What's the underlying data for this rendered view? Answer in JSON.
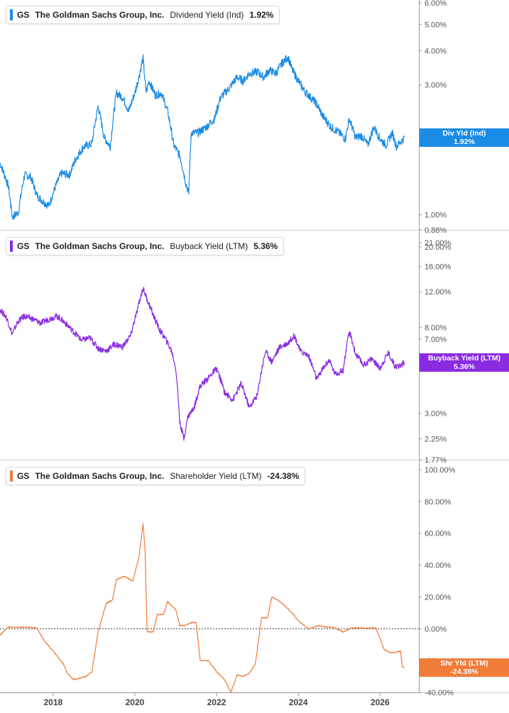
{
  "chart_data": [
    {
      "type": "line",
      "ticker": "GS",
      "company": "The Goldman Sachs Group, Inc.",
      "metric": "Dividend Yield (Ind)",
      "current_value": "1.92%",
      "flag_label": "Div Yld (Ind)",
      "flag_value": "1.92%",
      "color": "#1a8ce6",
      "scale": "log",
      "ylim": [
        0.88,
        6.0
      ],
      "yticks": [
        "6.00%",
        "5.00%",
        "4.00%",
        "3.00%",
        "2.00%",
        "1.00%",
        "0.88%"
      ],
      "ytick_values": [
        6.0,
        5.0,
        4.0,
        3.0,
        2.0,
        1.0,
        0.88
      ],
      "x": [
        2016.7,
        2016.9,
        2017.0,
        2017.15,
        2017.3,
        2017.45,
        2017.6,
        2017.75,
        2017.9,
        2018.05,
        2018.2,
        2018.4,
        2018.55,
        2018.75,
        2018.95,
        2019.1,
        2019.25,
        2019.4,
        2019.55,
        2019.7,
        2019.85,
        2020.0,
        2020.1,
        2020.2,
        2020.27,
        2020.35,
        2020.5,
        2020.65,
        2020.8,
        2020.95,
        2021.1,
        2021.25,
        2021.32,
        2021.38,
        2021.55,
        2021.75,
        2021.95,
        2022.1,
        2022.3,
        2022.5,
        2022.65,
        2022.8,
        2023.0,
        2023.15,
        2023.3,
        2023.45,
        2023.6,
        2023.75,
        2023.85,
        2024.0,
        2024.15,
        2024.3,
        2024.45,
        2024.6,
        2024.8,
        2025.0,
        2025.15,
        2025.25,
        2025.4,
        2025.55,
        2025.7,
        2025.85,
        2026.0,
        2026.15,
        2026.3,
        2026.4,
        2026.5,
        2026.6
      ],
      "y": [
        1.55,
        1.28,
        0.98,
        1.02,
        1.4,
        1.38,
        1.18,
        1.12,
        1.08,
        1.26,
        1.42,
        1.4,
        1.6,
        1.78,
        1.82,
        2.5,
        1.92,
        1.78,
        2.8,
        2.7,
        2.4,
        2.8,
        3.2,
        3.75,
        2.8,
        3.1,
        2.75,
        2.8,
        2.4,
        1.8,
        1.65,
        1.3,
        1.2,
        2.0,
        2.0,
        2.1,
        2.25,
        2.7,
        2.9,
        3.2,
        3.1,
        3.3,
        3.35,
        3.2,
        3.4,
        3.3,
        3.6,
        3.8,
        3.4,
        3.1,
        2.85,
        2.7,
        2.55,
        2.3,
        2.1,
        2.0,
        1.9,
        2.25,
        1.92,
        1.95,
        1.8,
        2.1,
        1.9,
        1.8,
        2.0,
        1.78,
        1.85,
        1.92
      ]
    },
    {
      "type": "line",
      "ticker": "GS",
      "company": "The Goldman Sachs Group, Inc.",
      "metric": "Buyback Yield (LTM)",
      "current_value": "5.36%",
      "flag_label": "Buyback Yield (LTM)",
      "flag_value": "5.36%",
      "color": "#8a2be2",
      "scale": "log",
      "ylim": [
        1.77,
        21.0
      ],
      "yticks": [
        "21.00%",
        "20.00%",
        "16.00%",
        "12.00%",
        "8.00%",
        "7.00%",
        "3.00%",
        "2.25%",
        "1.77%"
      ],
      "ytick_values": [
        21.0,
        20.0,
        16.0,
        12.0,
        8.0,
        7.0,
        3.0,
        2.25,
        1.77
      ],
      "x": [
        2016.7,
        2016.85,
        2017.0,
        2017.15,
        2017.3,
        2017.5,
        2017.7,
        2017.9,
        2018.1,
        2018.3,
        2018.5,
        2018.7,
        2018.9,
        2019.1,
        2019.3,
        2019.5,
        2019.7,
        2019.9,
        2020.05,
        2020.2,
        2020.3,
        2020.45,
        2020.6,
        2020.75,
        2020.9,
        2021.0,
        2021.1,
        2021.2,
        2021.3,
        2021.45,
        2021.6,
        2021.8,
        2022.0,
        2022.2,
        2022.4,
        2022.6,
        2022.8,
        2023.0,
        2023.2,
        2023.35,
        2023.55,
        2023.75,
        2023.9,
        2024.05,
        2024.25,
        2024.45,
        2024.6,
        2024.75,
        2024.9,
        2025.1,
        2025.25,
        2025.4,
        2025.6,
        2025.8,
        2026.0,
        2026.2,
        2026.35,
        2026.45,
        2026.6
      ],
      "y": [
        9.8,
        9.0,
        7.4,
        8.6,
        9.1,
        8.8,
        8.4,
        8.8,
        9.1,
        8.4,
        7.6,
        6.9,
        7.1,
        6.3,
        6.1,
        6.6,
        6.4,
        7.3,
        9.5,
        12.5,
        11.0,
        9.2,
        7.8,
        7.0,
        6.1,
        5.0,
        2.7,
        2.25,
        2.9,
        3.2,
        4.1,
        4.5,
        5.0,
        3.8,
        3.5,
        4.2,
        3.2,
        3.7,
        6.1,
        5.4,
        6.4,
        6.7,
        7.3,
        6.1,
        5.8,
        4.4,
        5.0,
        5.5,
        4.7,
        4.9,
        7.6,
        5.9,
        5.2,
        5.6,
        5.0,
        6.0,
        5.2,
        5.1,
        5.36
      ]
    },
    {
      "type": "line",
      "ticker": "GS",
      "company": "The Goldman Sachs Group, Inc.",
      "metric": "Shareholder Yield (LTM)",
      "current_value": "-24.38%",
      "flag_label": "Shr Yld (LTM)",
      "flag_value": "-24.38%",
      "color": "#f07c3a",
      "scale": "linear",
      "ylim": [
        -40.0,
        100.0
      ],
      "yticks": [
        "100.00%",
        "80.00%",
        "60.00%",
        "40.00%",
        "20.00%",
        "0.00%",
        "-20",
        "-40.00%"
      ],
      "ytick_values": [
        100.0,
        80.0,
        60.0,
        40.0,
        20.0,
        0.0,
        -20.0,
        -40.0
      ],
      "x": [
        2016.7,
        2016.9,
        2017.3,
        2017.6,
        2017.8,
        2018.0,
        2018.25,
        2018.35,
        2018.5,
        2018.8,
        2018.95,
        2019.1,
        2019.3,
        2019.45,
        2019.55,
        2019.75,
        2019.95,
        2020.1,
        2020.15,
        2020.2,
        2020.25,
        2020.3,
        2020.45,
        2020.55,
        2020.7,
        2020.8,
        2021.0,
        2021.1,
        2021.2,
        2021.4,
        2021.5,
        2021.6,
        2021.8,
        2022.0,
        2022.2,
        2022.35,
        2022.5,
        2022.65,
        2022.8,
        2022.95,
        2023.1,
        2023.25,
        2023.35,
        2023.5,
        2023.65,
        2023.85,
        2024.0,
        2024.25,
        2024.5,
        2024.7,
        2024.85,
        2025.1,
        2025.3,
        2025.5,
        2025.7,
        2025.9,
        2026.1,
        2026.25,
        2026.35,
        2026.5,
        2026.55,
        2026.6
      ],
      "y": [
        -4.0,
        1.0,
        1.0,
        0.5,
        -8.0,
        -14.0,
        -22.0,
        -28.0,
        -32.0,
        -30.0,
        -27.0,
        -2.0,
        16.0,
        18.0,
        31.0,
        33.0,
        30.0,
        45.0,
        55.0,
        66.0,
        50.0,
        -2.0,
        -2.0,
        9.0,
        9.0,
        17.0,
        12.0,
        2.0,
        2.0,
        4.0,
        4.0,
        -20.0,
        -20.0,
        -27.0,
        -32.0,
        -40.0,
        -29.0,
        -30.0,
        -28.0,
        -22.0,
        7.0,
        7.0,
        20.0,
        18.0,
        15.0,
        10.0,
        5.0,
        0.0,
        2.0,
        1.0,
        1.0,
        -2.0,
        0.5,
        0.5,
        0.5,
        0.5,
        -13.0,
        -15.0,
        -15.0,
        -14.0,
        -24.0,
        -24.38
      ]
    }
  ],
  "x_axis": {
    "min": 2016.7,
    "max": 2026.95,
    "ticks": [
      "2018",
      "2020",
      "2022",
      "2024",
      "2026"
    ],
    "tick_values": [
      2018,
      2020,
      2022,
      2024,
      2026
    ]
  },
  "colors": {
    "axis": "#999999",
    "zero_line": "#333333"
  }
}
